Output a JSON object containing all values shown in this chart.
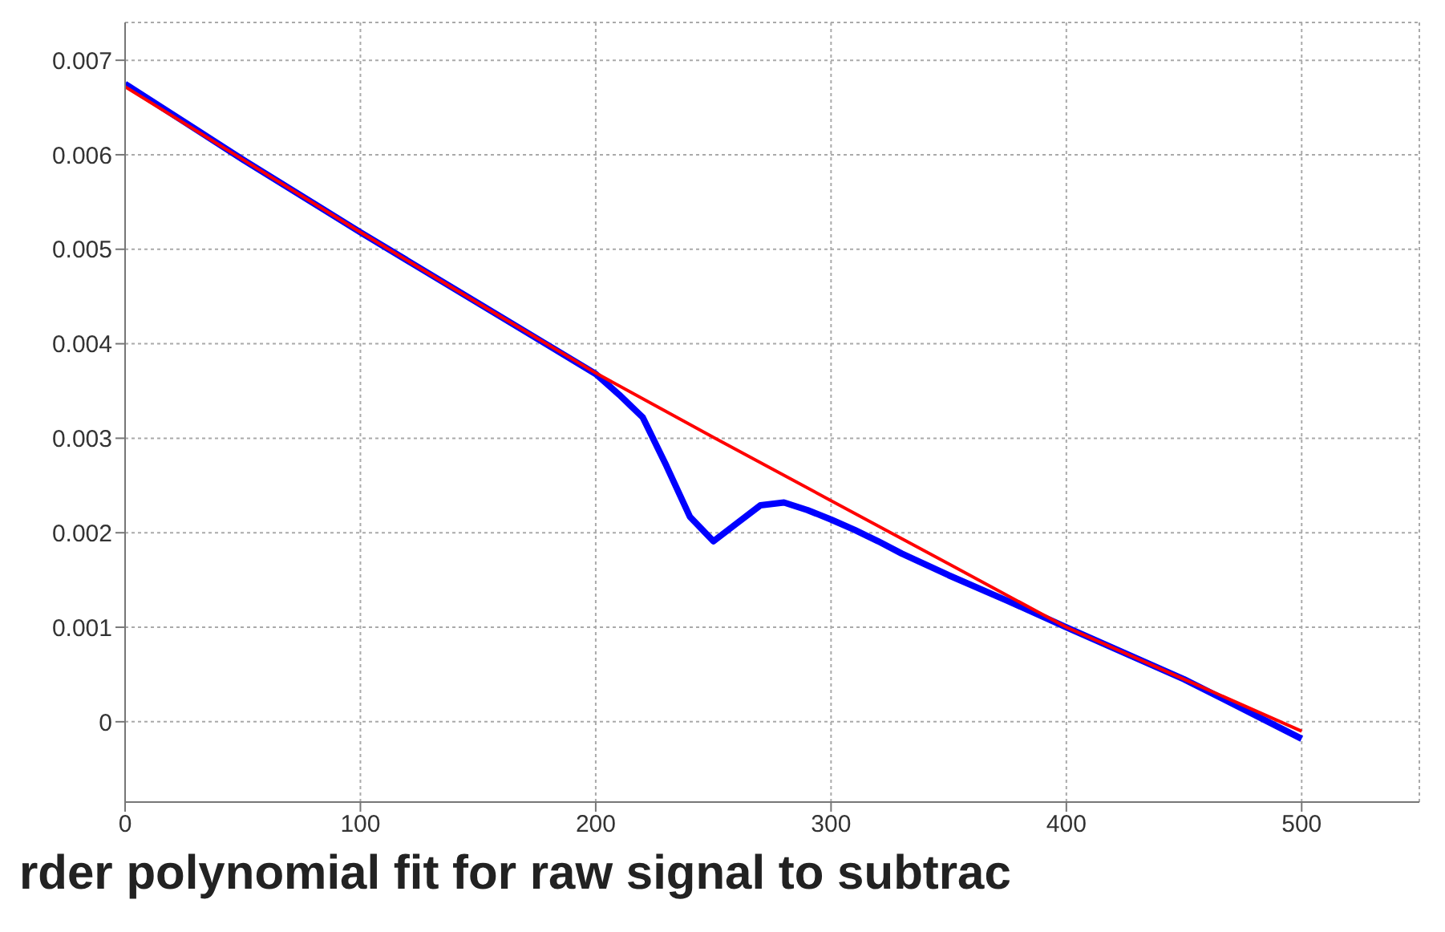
{
  "chart_data": {
    "type": "line",
    "xlim": [
      0,
      550
    ],
    "xticks": [
      0,
      100,
      200,
      300,
      400,
      500
    ],
    "ylim": [
      -0.00085,
      0.0074
    ],
    "yticks": [
      0,
      0.001,
      0.002,
      0.003,
      0.004,
      0.005,
      0.006,
      0.007
    ],
    "grid": true,
    "legend": false,
    "marker": "none",
    "line_style": "solid",
    "annotations": [
      "rder polynomial fit for raw signal to subtrac"
    ],
    "series": [
      {
        "color": "#0000ff",
        "x": [
          0,
          50,
          100,
          150,
          180,
          200,
          210,
          220,
          230,
          240,
          250,
          260,
          270,
          280,
          290,
          300,
          310,
          320,
          330,
          350,
          375,
          400,
          450,
          500
        ],
        "values": [
          0.00675,
          0.00595,
          0.00518,
          0.00443,
          0.00398,
          0.00368,
          0.00346,
          0.00322,
          0.00271,
          0.00217,
          0.00191,
          0.0021,
          0.00229,
          0.00232,
          0.00224,
          0.00214,
          0.00203,
          0.00191,
          0.00178,
          0.00155,
          0.00128,
          0.001,
          0.00045,
          -0.00018
        ]
      },
      {
        "color": "#ff0000",
        "x": [
          0,
          50,
          100,
          150,
          200,
          250,
          300,
          350,
          400,
          450,
          500
        ],
        "values": [
          0.00672,
          0.00595,
          0.00518,
          0.00443,
          0.00369,
          0.00301,
          0.00234,
          0.00167,
          0.001,
          0.00045,
          -0.0001
        ]
      }
    ]
  }
}
